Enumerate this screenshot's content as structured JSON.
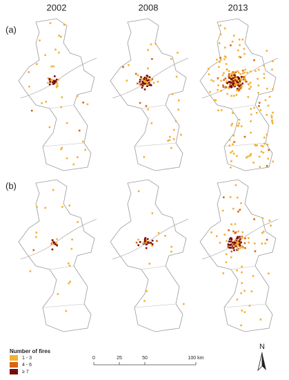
{
  "columns": [
    "2002",
    "2008",
    "2013"
  ],
  "rows": [
    "(a)",
    "(b)"
  ],
  "legend": {
    "title": "Number of fires",
    "items": [
      {
        "label": "1 - 3",
        "color": "#f5b030"
      },
      {
        "label": "4 - 6",
        "color": "#d9650f"
      },
      {
        "label": "≥ 7",
        "color": "#7a0a0a"
      }
    ]
  },
  "scale_bar": {
    "ticks": [
      0,
      25,
      50,
      {
        "value": 100,
        "label": "100 km"
      }
    ]
  },
  "north_arrow": "N"
}
